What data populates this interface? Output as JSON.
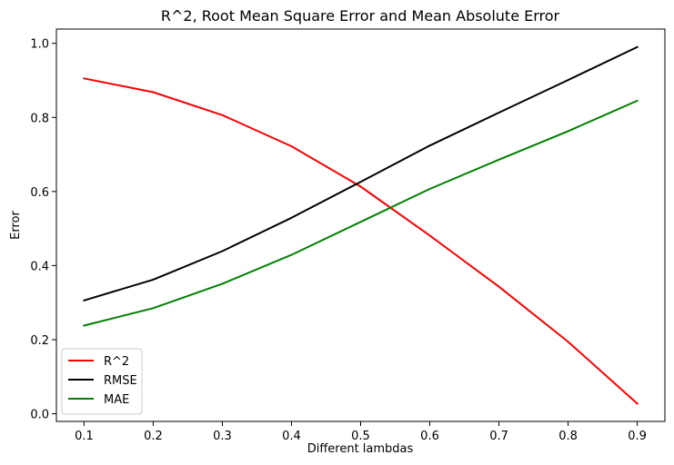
{
  "chart_data": {
    "type": "line",
    "title": "R^2, Root Mean Square Error and Mean Absolute Error",
    "xlabel": "Different lambdas",
    "ylabel": "Error",
    "x": [
      0.1,
      0.2,
      0.3,
      0.4,
      0.5,
      0.6,
      0.7,
      0.8,
      0.9
    ],
    "x_tick_labels": [
      "0.1",
      "0.2",
      "0.3",
      "0.4",
      "0.5",
      "0.6",
      "0.7",
      "0.8",
      "0.9"
    ],
    "y_ticks": [
      0.0,
      0.2,
      0.4,
      0.6,
      0.8,
      1.0
    ],
    "y_tick_labels": [
      "0.0",
      "0.2",
      "0.4",
      "0.6",
      "0.8",
      "1.0"
    ],
    "xlim": [
      0.06,
      0.94
    ],
    "ylim": [
      -0.0207,
      1.0385
    ],
    "grid": false,
    "legend_position": "lower-left",
    "series": [
      {
        "name": "R^2",
        "color": "#ff0000",
        "values": [
          0.905,
          0.868,
          0.806,
          0.722,
          0.613,
          0.481,
          0.343,
          0.194,
          0.027
        ]
      },
      {
        "name": "RMSE",
        "color": "#000000",
        "values": [
          0.306,
          0.362,
          0.439,
          0.529,
          0.626,
          0.724,
          0.813,
          0.901,
          0.99
        ]
      },
      {
        "name": "MAE",
        "color": "#008000",
        "values": [
          0.238,
          0.285,
          0.351,
          0.429,
          0.518,
          0.607,
          0.686,
          0.763,
          0.845
        ]
      }
    ]
  }
}
